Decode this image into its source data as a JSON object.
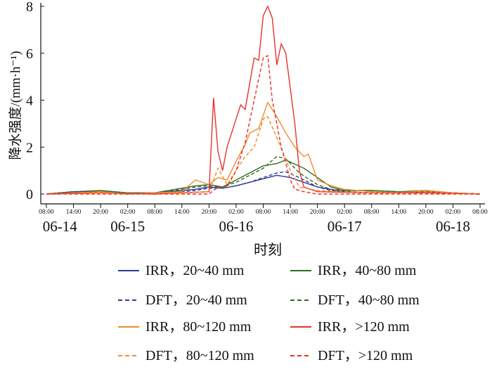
{
  "chart_data": {
    "type": "line",
    "title": "",
    "xlabel": "时刻",
    "ylabel": "降水强度/(mm·h⁻¹)",
    "xlim_hours_from_0614_0800": [
      0,
      96
    ],
    "ylim": [
      0,
      8
    ],
    "yticks": [
      0,
      2,
      4,
      6,
      8
    ],
    "xtick_labels": [
      "08:00",
      "14:00",
      "20:00",
      "02:00",
      "08:00",
      "14:00",
      "20:00",
      "02:00",
      "08:00",
      "14:00",
      "20:00",
      "02:00",
      "08:00",
      "14:00",
      "20:00",
      "02:00",
      "08:00"
    ],
    "date_labels": [
      {
        "label": "06-14",
        "hour": 3
      },
      {
        "label": "06-15",
        "hour": 18
      },
      {
        "label": "06-16",
        "hour": 42
      },
      {
        "label": "06-17",
        "hour": 66
      },
      {
        "label": "06-18",
        "hour": 90
      }
    ],
    "grid": false,
    "legend_position": "bottom",
    "series": [
      {
        "name": "IRR，20~40 mm",
        "color": "#2b3a97",
        "dash": false,
        "x": [
          0,
          6,
          12,
          18,
          24,
          30,
          33,
          36,
          39,
          42,
          45,
          48,
          51,
          54,
          57,
          60,
          63,
          66,
          72,
          78,
          84,
          90,
          96
        ],
        "y": [
          0,
          0.1,
          0.1,
          0,
          0.05,
          0.15,
          0.2,
          0.3,
          0.25,
          0.35,
          0.5,
          0.65,
          0.8,
          0.7,
          0.5,
          0.3,
          0.2,
          0.1,
          0.05,
          0.05,
          0.1,
          0.05,
          0
        ]
      },
      {
        "name": "IRR，40~80 mm",
        "color": "#2e6b1e",
        "dash": false,
        "x": [
          0,
          6,
          12,
          18,
          24,
          30,
          33,
          36,
          39,
          42,
          45,
          48,
          51,
          53,
          57,
          60,
          63,
          66,
          72,
          78,
          84,
          90,
          96
        ],
        "y": [
          0,
          0.1,
          0.15,
          0.05,
          0.05,
          0.25,
          0.35,
          0.4,
          0.3,
          0.6,
          0.9,
          1.2,
          1.3,
          1.45,
          1.1,
          0.7,
          0.3,
          0.15,
          0.15,
          0.1,
          0.15,
          0.05,
          0
        ]
      },
      {
        "name": "DFT，20~40 mm",
        "color": "#2b3a97",
        "dash": true,
        "x": [
          0,
          6,
          12,
          18,
          24,
          30,
          33,
          36,
          39,
          42,
          45,
          48,
          51,
          53,
          56,
          60,
          63,
          66,
          72,
          78,
          84,
          90,
          96
        ],
        "y": [
          0,
          0.1,
          0.1,
          0,
          0.05,
          0.1,
          0.15,
          0.25,
          0.25,
          0.35,
          0.5,
          0.7,
          0.9,
          0.95,
          0.7,
          0.3,
          0.15,
          0.1,
          0.05,
          0.05,
          0.1,
          0.05,
          0
        ]
      },
      {
        "name": "DFT，40~80 mm",
        "color": "#2e6b1e",
        "dash": true,
        "x": [
          0,
          6,
          12,
          18,
          24,
          30,
          33,
          36,
          39,
          42,
          45,
          48,
          51,
          53,
          56,
          60,
          63,
          66,
          72,
          78,
          84,
          90,
          96
        ],
        "y": [
          0,
          0.05,
          0.1,
          0.05,
          0.05,
          0.2,
          0.3,
          0.35,
          0.3,
          0.5,
          0.8,
          1.1,
          1.6,
          1.5,
          0.9,
          0.4,
          0.2,
          0.15,
          0.15,
          0.1,
          0.1,
          0.05,
          0
        ]
      },
      {
        "name": "IRR，80~120 mm",
        "color": "#f5892a",
        "dash": false,
        "x": [
          0,
          6,
          12,
          18,
          24,
          30,
          33,
          36,
          38,
          40,
          42,
          44,
          45,
          47,
          49,
          51,
          53,
          55,
          57,
          58,
          60,
          63,
          66,
          72,
          78,
          84,
          90,
          96
        ],
        "y": [
          0,
          0.05,
          0.1,
          0,
          0.05,
          0.1,
          0.6,
          0.4,
          0.7,
          0.6,
          1.4,
          2.1,
          2.6,
          2.8,
          3.9,
          3.3,
          2.6,
          2.0,
          1.6,
          1.7,
          0.6,
          0.35,
          0.2,
          0.1,
          0.05,
          0.15,
          0.05,
          0
        ]
      },
      {
        "name": "IRR，>120 mm",
        "color": "#e8312a",
        "dash": false,
        "x": [
          0,
          12,
          24,
          30,
          36,
          37,
          38,
          39,
          40,
          42,
          43,
          44,
          45,
          46,
          47,
          48,
          49,
          50,
          51,
          52,
          53,
          55,
          56,
          57,
          60,
          72,
          84,
          96
        ],
        "y": [
          0,
          0.05,
          0,
          0.05,
          0.1,
          4.1,
          1.8,
          1.0,
          2.0,
          3.2,
          3.8,
          3.6,
          4.7,
          5.8,
          5.7,
          7.6,
          8.0,
          7.5,
          5.5,
          6.4,
          6.0,
          3.0,
          1.0,
          0.3,
          0.1,
          0.05,
          0.05,
          0
        ]
      },
      {
        "name": "DFT，80~120 mm",
        "color": "#f5892a",
        "dash": true,
        "x": [
          0,
          12,
          24,
          30,
          36,
          38,
          40,
          42,
          44,
          46,
          48,
          49,
          51,
          54,
          56,
          60,
          66,
          72,
          84,
          96
        ],
        "y": [
          0,
          0.05,
          0,
          0.05,
          0.1,
          1.1,
          0.4,
          1.0,
          1.6,
          2.0,
          3.2,
          3.3,
          2.4,
          1.0,
          0.3,
          0.15,
          0.1,
          0.05,
          0.1,
          0
        ]
      },
      {
        "name": "DFT，>120 mm",
        "color": "#e8312a",
        "dash": true,
        "x": [
          0,
          12,
          24,
          36,
          38,
          40,
          42,
          44,
          46,
          48,
          49,
          50,
          52,
          54,
          55,
          57,
          60,
          72,
          84,
          96
        ],
        "y": [
          0,
          0,
          0,
          0,
          0.3,
          0.3,
          1.0,
          2.2,
          4.0,
          5.8,
          5.9,
          4.0,
          2.0,
          0.6,
          0.2,
          0.1,
          0,
          0,
          0,
          0
        ]
      }
    ]
  }
}
